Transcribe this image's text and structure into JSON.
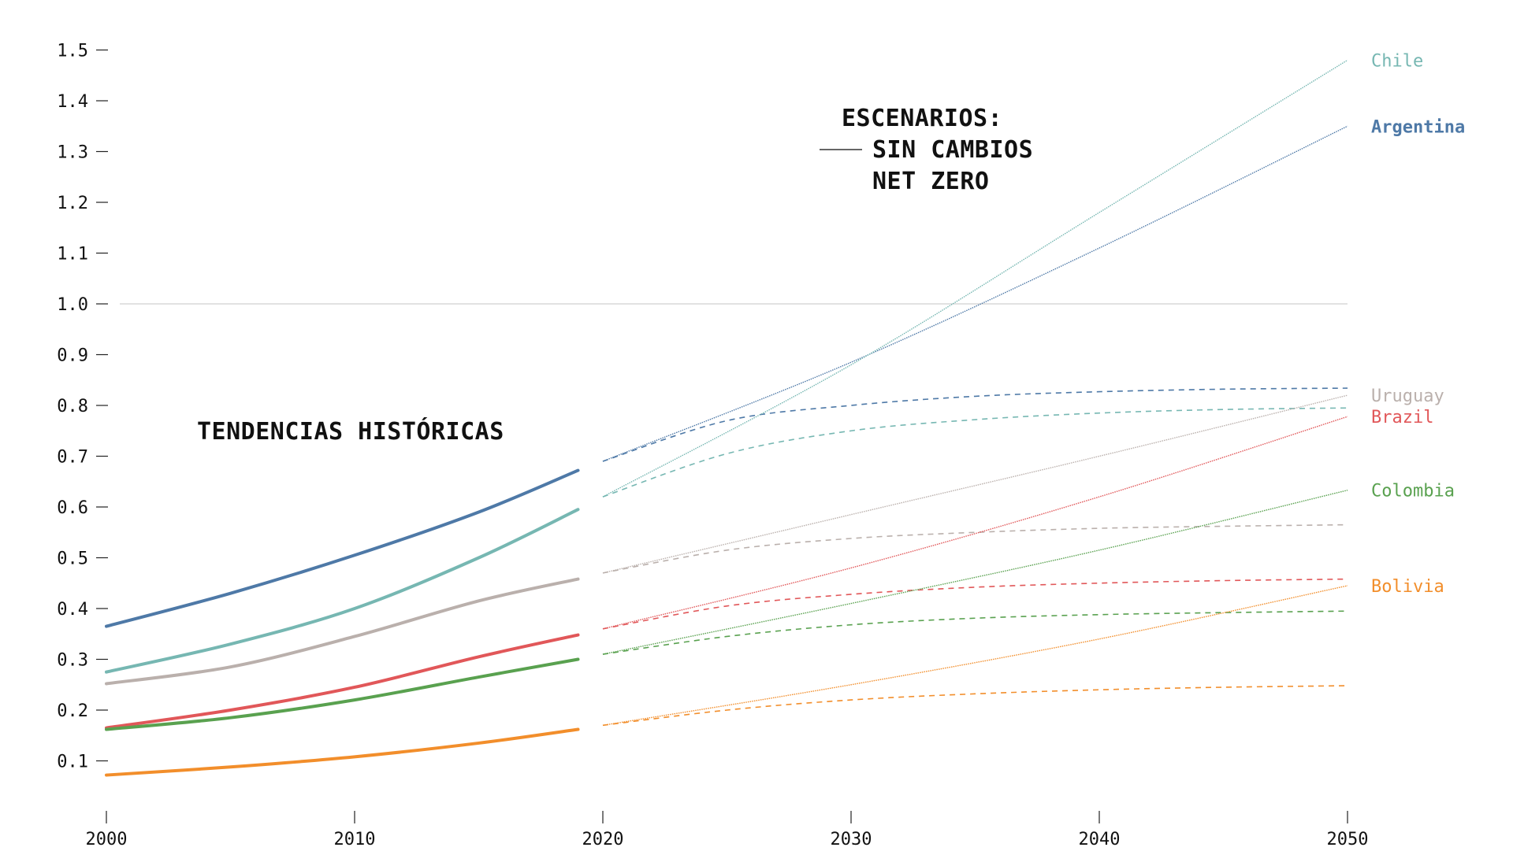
{
  "chart_data": {
    "type": "line",
    "title": "",
    "xlabel": "",
    "ylabel": "",
    "xlim": [
      2000,
      2050
    ],
    "ylim": [
      0,
      1.55
    ],
    "x_ticks": [
      "2000",
      "2010",
      "2020",
      "2030",
      "2040",
      "2050"
    ],
    "y_ticks": [
      "0.1",
      "0.2",
      "0.3",
      "0.4",
      "0.5",
      "0.6",
      "0.7",
      "0.8",
      "0.9",
      "1.0",
      "1.1",
      "1.2",
      "1.3",
      "1.4",
      "1.5"
    ],
    "reference_line": 1.0,
    "annotations": {
      "historical": "TENDENCIAS HISTÓRICAS",
      "scenarios_title": "ESCENARIOS:",
      "scenario_no_change": "SIN CAMBIOS",
      "scenario_net_zero": "NET ZERO"
    },
    "series": [
      {
        "name": "Argentina",
        "color": "#4e79a7",
        "bold": true,
        "historical": {
          "x": [
            2000,
            2005,
            2010,
            2015,
            2019
          ],
          "y": [
            0.365,
            0.43,
            0.505,
            0.59,
            0.672
          ]
        },
        "sin_cambios": {
          "x": [
            2020,
            2030,
            2040,
            2050
          ],
          "y": [
            0.69,
            0.885,
            1.11,
            1.35
          ]
        },
        "net_zero": {
          "x": [
            2020,
            2025,
            2030,
            2035,
            2040,
            2045,
            2050
          ],
          "y": [
            0.69,
            0.77,
            0.8,
            0.818,
            0.827,
            0.832,
            0.834
          ]
        }
      },
      {
        "name": "Chile",
        "color": "#76b7b2",
        "bold": false,
        "historical": {
          "x": [
            2000,
            2005,
            2010,
            2015,
            2019
          ],
          "y": [
            0.275,
            0.33,
            0.4,
            0.5,
            0.595
          ]
        },
        "sin_cambios": {
          "x": [
            2020,
            2030,
            2040,
            2050
          ],
          "y": [
            0.62,
            0.88,
            1.18,
            1.48
          ]
        },
        "net_zero": {
          "x": [
            2020,
            2025,
            2030,
            2035,
            2040,
            2045,
            2050
          ],
          "y": [
            0.62,
            0.705,
            0.75,
            0.772,
            0.785,
            0.792,
            0.795
          ]
        }
      },
      {
        "name": "Uruguay",
        "color": "#bab0ac",
        "bold": false,
        "historical": {
          "x": [
            2000,
            2005,
            2010,
            2015,
            2019
          ],
          "y": [
            0.252,
            0.285,
            0.345,
            0.415,
            0.458
          ]
        },
        "sin_cambios": {
          "x": [
            2020,
            2030,
            2040,
            2050
          ],
          "y": [
            0.47,
            0.585,
            0.7,
            0.82
          ]
        },
        "net_zero": {
          "x": [
            2020,
            2025,
            2030,
            2035,
            2040,
            2045,
            2050
          ],
          "y": [
            0.47,
            0.515,
            0.538,
            0.55,
            0.558,
            0.562,
            0.565
          ]
        }
      },
      {
        "name": "Brazil",
        "color": "#e15759",
        "bold": false,
        "historical": {
          "x": [
            2000,
            2005,
            2010,
            2015,
            2019
          ],
          "y": [
            0.165,
            0.2,
            0.245,
            0.305,
            0.348
          ]
        },
        "sin_cambios": {
          "x": [
            2020,
            2030,
            2040,
            2050
          ],
          "y": [
            0.36,
            0.48,
            0.62,
            0.778
          ]
        },
        "net_zero": {
          "x": [
            2020,
            2025,
            2030,
            2035,
            2040,
            2045,
            2050
          ],
          "y": [
            0.36,
            0.405,
            0.428,
            0.442,
            0.45,
            0.455,
            0.458
          ]
        }
      },
      {
        "name": "Colombia",
        "color": "#59a14f",
        "bold": false,
        "historical": {
          "x": [
            2000,
            2005,
            2010,
            2015,
            2019
          ],
          "y": [
            0.162,
            0.185,
            0.22,
            0.265,
            0.3
          ]
        },
        "sin_cambios": {
          "x": [
            2020,
            2030,
            2040,
            2050
          ],
          "y": [
            0.31,
            0.41,
            0.515,
            0.633
          ]
        },
        "net_zero": {
          "x": [
            2020,
            2025,
            2030,
            2035,
            2040,
            2045,
            2050
          ],
          "y": [
            0.31,
            0.345,
            0.368,
            0.381,
            0.388,
            0.392,
            0.395
          ]
        }
      },
      {
        "name": "Bolivia",
        "color": "#f28e2b",
        "bold": false,
        "historical": {
          "x": [
            2000,
            2005,
            2010,
            2015,
            2019
          ],
          "y": [
            0.072,
            0.088,
            0.108,
            0.135,
            0.162
          ]
        },
        "sin_cambios": {
          "x": [
            2020,
            2030,
            2040,
            2050
          ],
          "y": [
            0.17,
            0.25,
            0.34,
            0.445
          ]
        },
        "net_zero": {
          "x": [
            2020,
            2025,
            2030,
            2035,
            2040,
            2045,
            2050
          ],
          "y": [
            0.17,
            0.2,
            0.22,
            0.232,
            0.24,
            0.245,
            0.248
          ]
        }
      }
    ]
  }
}
